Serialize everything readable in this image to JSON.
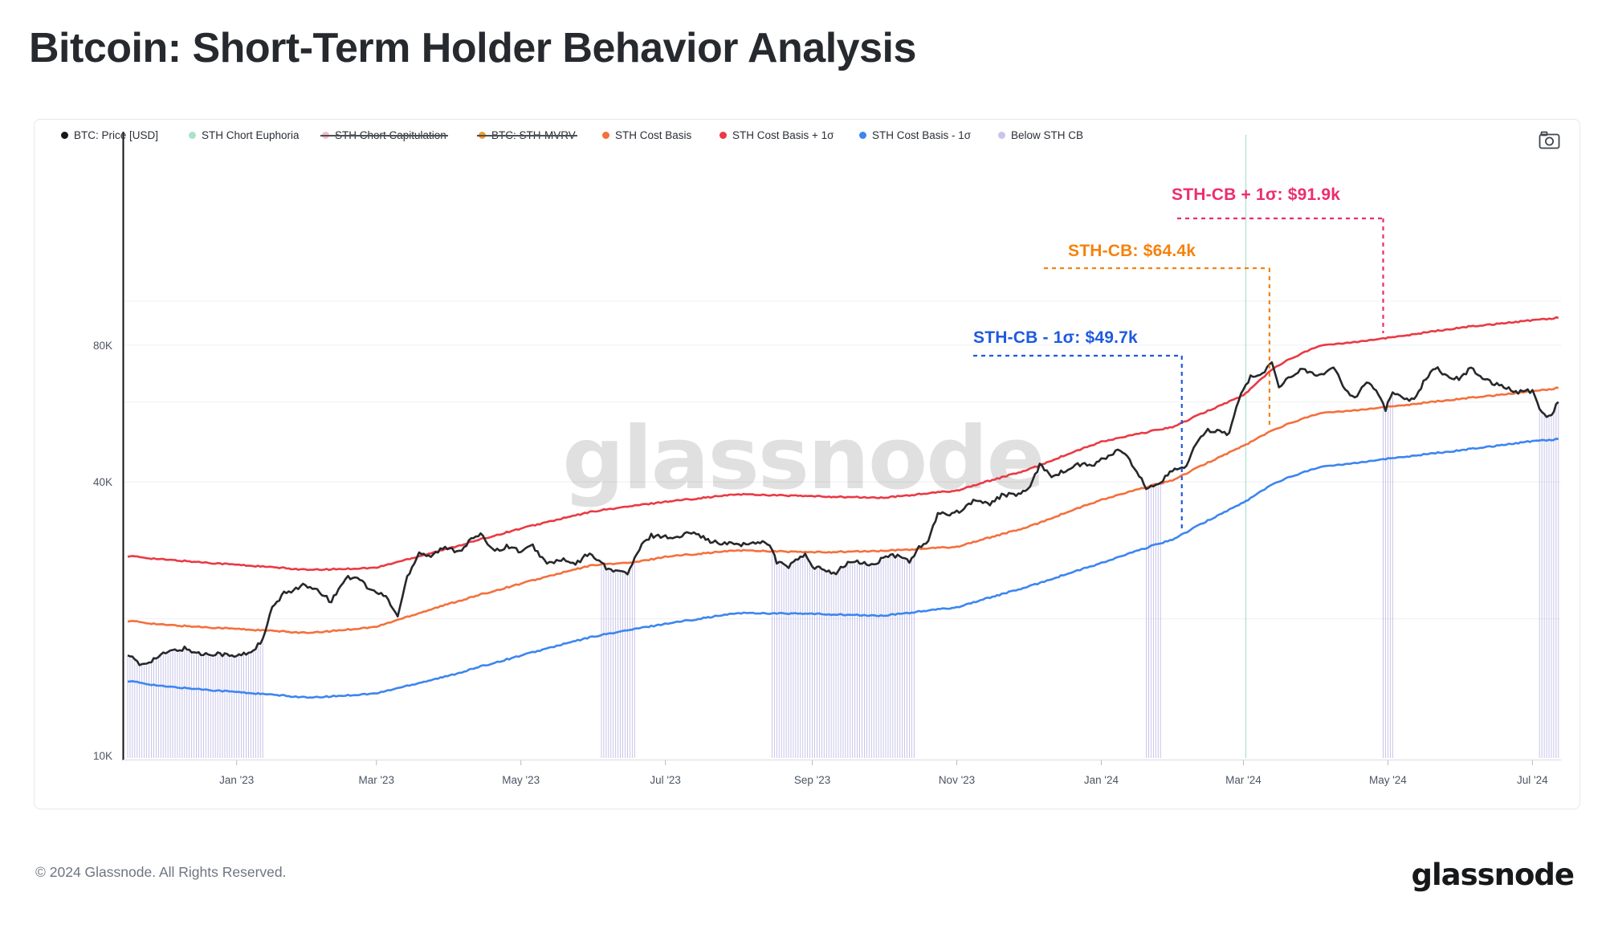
{
  "page": {
    "title": "Bitcoin: Short-Term Holder Behavior Analysis",
    "footer_copyright": "© 2024 Glassnode. All Rights Reserved.",
    "brand_logo": "glassnode",
    "watermark": "glassnode"
  },
  "toolbar": {
    "screenshot_icon": "camera-icon"
  },
  "legend": {
    "items": [
      {
        "label": "BTC: Price [USD]",
        "color": "#17181c",
        "struck": false
      },
      {
        "label": "STH Chort Euphoria",
        "color": "#a9e3c8",
        "struck": false
      },
      {
        "label": "STH Chort Capitulation",
        "color": "#f5bcc8",
        "struck": true
      },
      {
        "label": "BTC: STH-MVRV",
        "color": "#f09d2e",
        "struck": true
      },
      {
        "label": "STH Cost Basis",
        "color": "#f4703d",
        "struck": false
      },
      {
        "label": "STH Cost Basis + 1σ",
        "color": "#e93a44",
        "struck": false
      },
      {
        "label": "STH Cost Basis - 1σ",
        "color": "#3d85f0",
        "struck": false
      },
      {
        "label": "Below STH CB",
        "color": "#c9c4ec",
        "struck": false
      }
    ]
  },
  "annotations": [
    {
      "id": "plus",
      "label": "STH-CB + 1σ: $91.9k",
      "value": "91.9k",
      "color": "#ed2d6d",
      "series": "sth_cb_plus_1sd",
      "anchor_date": "2024-04-29"
    },
    {
      "id": "cb",
      "label": "STH-CB: $64.4k",
      "value": "64.4k",
      "color": "#f5820d",
      "series": "sth_cost_basis",
      "anchor_date": "2024-03-12"
    },
    {
      "id": "minus",
      "label": "STH-CB - 1σ: $49.7k",
      "value": "49.7k",
      "color": "#1f5ae0",
      "series": "sth_cb_minus_1sd",
      "anchor_date": "2024-02-04"
    }
  ],
  "chart_data": {
    "type": "line",
    "title": "Bitcoin: Short-Term Holder Behavior Analysis",
    "y_axis": {
      "scale": "log",
      "unit": "USD",
      "ticks": [
        {
          "label": "10K",
          "value": 10
        },
        {
          "label": "40K",
          "value": 40
        },
        {
          "label": "80K",
          "value": 80
        }
      ],
      "gridline_values": [
        20,
        40,
        60,
        80,
        100
      ]
    },
    "x_axis": {
      "ticks": [
        {
          "label": "Jan '23",
          "date": "2023-01-01"
        },
        {
          "label": "Mar '23",
          "date": "2023-03-01"
        },
        {
          "label": "May '23",
          "date": "2023-05-01"
        },
        {
          "label": "Jul '23",
          "date": "2023-07-01"
        },
        {
          "label": "Sep '23",
          "date": "2023-09-01"
        },
        {
          "label": "Nov '23",
          "date": "2023-11-01"
        },
        {
          "label": "Jan '24",
          "date": "2024-01-01"
        },
        {
          "label": "Mar '24",
          "date": "2024-03-01"
        },
        {
          "label": "May '24",
          "date": "2024-05-01"
        },
        {
          "label": "Jul '24",
          "date": "2024-07-01"
        }
      ]
    },
    "series": [
      {
        "id": "btc_price",
        "name": "BTC: Price [USD]",
        "color": "#26282b",
        "width": 2.6,
        "noise": 0.011,
        "points": [
          [
            "2022-11-16",
            16.8
          ],
          [
            "2022-11-21",
            15.8
          ],
          [
            "2022-11-26",
            16.2
          ],
          [
            "2022-12-03",
            16.9
          ],
          [
            "2022-12-10",
            17.2
          ],
          [
            "2022-12-17",
            16.7
          ],
          [
            "2022-12-24",
            16.8
          ],
          [
            "2022-12-31",
            16.5
          ],
          [
            "2023-01-07",
            16.9
          ],
          [
            "2023-01-12",
            17.9
          ],
          [
            "2023-01-16",
            21.1
          ],
          [
            "2023-01-21",
            22.7
          ],
          [
            "2023-01-29",
            23.7
          ],
          [
            "2023-02-05",
            22.9
          ],
          [
            "2023-02-10",
            21.8
          ],
          [
            "2023-02-16",
            24.6
          ],
          [
            "2023-02-21",
            24.8
          ],
          [
            "2023-02-26",
            23.2
          ],
          [
            "2023-03-05",
            22.4
          ],
          [
            "2023-03-10",
            20.2
          ],
          [
            "2023-03-14",
            24.7
          ],
          [
            "2023-03-19",
            28.0
          ],
          [
            "2023-03-24",
            27.5
          ],
          [
            "2023-03-29",
            28.6
          ],
          [
            "2023-04-05",
            28.2
          ],
          [
            "2023-04-11",
            30.2
          ],
          [
            "2023-04-14",
            30.5
          ],
          [
            "2023-04-20",
            28.3
          ],
          [
            "2023-04-26",
            28.9
          ],
          [
            "2023-05-01",
            28.1
          ],
          [
            "2023-05-06",
            28.9
          ],
          [
            "2023-05-12",
            26.4
          ],
          [
            "2023-05-18",
            27.0
          ],
          [
            "2023-05-24",
            26.3
          ],
          [
            "2023-05-29",
            27.7
          ],
          [
            "2023-06-03",
            27.1
          ],
          [
            "2023-06-06",
            25.7
          ],
          [
            "2023-06-10",
            25.6
          ],
          [
            "2023-06-15",
            25.1
          ],
          [
            "2023-06-21",
            29.0
          ],
          [
            "2023-06-25",
            30.5
          ],
          [
            "2023-06-30",
            30.4
          ],
          [
            "2023-07-06",
            30.1
          ],
          [
            "2023-07-13",
            31.3
          ],
          [
            "2023-07-18",
            29.9
          ],
          [
            "2023-07-24",
            29.2
          ],
          [
            "2023-07-30",
            29.3
          ],
          [
            "2023-08-05",
            29.1
          ],
          [
            "2023-08-09",
            29.6
          ],
          [
            "2023-08-14",
            29.3
          ],
          [
            "2023-08-17",
            26.6
          ],
          [
            "2023-08-22",
            26.1
          ],
          [
            "2023-08-29",
            27.7
          ],
          [
            "2023-09-01",
            25.9
          ],
          [
            "2023-09-06",
            25.7
          ],
          [
            "2023-09-11",
            25.2
          ],
          [
            "2023-09-16",
            26.6
          ],
          [
            "2023-09-21",
            26.6
          ],
          [
            "2023-09-27",
            26.2
          ],
          [
            "2023-10-02",
            27.5
          ],
          [
            "2023-10-08",
            27.4
          ],
          [
            "2023-10-12",
            26.8
          ],
          [
            "2023-10-16",
            28.6
          ],
          [
            "2023-10-20",
            29.7
          ],
          [
            "2023-10-24",
            33.9
          ],
          [
            "2023-10-29",
            34.1
          ],
          [
            "2023-11-03",
            34.7
          ],
          [
            "2023-11-09",
            36.7
          ],
          [
            "2023-11-14",
            35.6
          ],
          [
            "2023-11-20",
            37.4
          ],
          [
            "2023-11-26",
            37.5
          ],
          [
            "2023-12-02",
            38.7
          ],
          [
            "2023-12-06",
            43.8
          ],
          [
            "2023-12-11",
            41.3
          ],
          [
            "2023-12-17",
            42.3
          ],
          [
            "2023-12-22",
            43.7
          ],
          [
            "2023-12-28",
            43.5
          ],
          [
            "2024-01-02",
            44.9
          ],
          [
            "2024-01-08",
            46.9
          ],
          [
            "2024-01-11",
            46.3
          ],
          [
            "2024-01-15",
            42.5
          ],
          [
            "2024-01-20",
            39.0
          ],
          [
            "2024-01-23",
            38.7
          ],
          [
            "2024-01-26",
            40.0
          ],
          [
            "2024-01-31",
            42.6
          ],
          [
            "2024-02-05",
            42.7
          ],
          [
            "2024-02-09",
            47.1
          ],
          [
            "2024-02-14",
            51.8
          ],
          [
            "2024-02-19",
            52.0
          ],
          [
            "2024-02-24",
            51.0
          ],
          [
            "2024-02-28",
            60.6
          ],
          [
            "2024-03-04",
            68.3
          ],
          [
            "2024-03-08",
            68.3
          ],
          [
            "2024-03-13",
            73.1
          ],
          [
            "2024-03-16",
            65.3
          ],
          [
            "2024-03-21",
            67.9
          ],
          [
            "2024-03-25",
            70.8
          ],
          [
            "2024-03-30",
            69.6
          ],
          [
            "2024-04-04",
            68.5
          ],
          [
            "2024-04-08",
            71.6
          ],
          [
            "2024-04-13",
            63.9
          ],
          [
            "2024-04-17",
            61.3
          ],
          [
            "2024-04-22",
            66.8
          ],
          [
            "2024-04-26",
            63.8
          ],
          [
            "2024-04-30",
            57.7
          ],
          [
            "2024-05-03",
            62.9
          ],
          [
            "2024-05-08",
            61.2
          ],
          [
            "2024-05-12",
            60.8
          ],
          [
            "2024-05-16",
            66.2
          ],
          [
            "2024-05-21",
            71.4
          ],
          [
            "2024-05-26",
            68.5
          ],
          [
            "2024-05-31",
            67.5
          ],
          [
            "2024-06-05",
            71.1
          ],
          [
            "2024-06-11",
            67.3
          ],
          [
            "2024-06-15",
            66.0
          ],
          [
            "2024-06-18",
            65.2
          ],
          [
            "2024-06-24",
            63.2
          ],
          [
            "2024-07-01",
            63.5
          ],
          [
            "2024-07-04",
            58.0
          ],
          [
            "2024-07-05",
            56.6
          ],
          [
            "2024-07-08",
            55.9
          ],
          [
            "2024-07-10",
            57.5
          ],
          [
            "2024-07-12",
            60.0
          ]
        ]
      },
      {
        "id": "sth_cb_plus_1sd",
        "name": "STH Cost Basis + 1σ",
        "color": "#e93a44",
        "width": 2.6,
        "noise": 0.0035,
        "points": [
          [
            "2022-11-16",
            27.5
          ],
          [
            "2022-12-01",
            27.0
          ],
          [
            "2023-01-01",
            26.3
          ],
          [
            "2023-02-01",
            25.6
          ],
          [
            "2023-03-01",
            25.9
          ],
          [
            "2023-04-01",
            28.6
          ],
          [
            "2023-05-01",
            31.6
          ],
          [
            "2023-06-01",
            34.5
          ],
          [
            "2023-07-01",
            36.2
          ],
          [
            "2023-08-01",
            37.6
          ],
          [
            "2023-09-01",
            37.2
          ],
          [
            "2023-10-01",
            36.9
          ],
          [
            "2023-11-01",
            38.3
          ],
          [
            "2023-12-01",
            42.5
          ],
          [
            "2024-01-01",
            49.0
          ],
          [
            "2024-02-01",
            53.0
          ],
          [
            "2024-03-01",
            62.0
          ],
          [
            "2024-03-15",
            72.0
          ],
          [
            "2024-04-01",
            79.5
          ],
          [
            "2024-05-01",
            83.0
          ],
          [
            "2024-06-01",
            87.5
          ],
          [
            "2024-07-01",
            90.8
          ],
          [
            "2024-07-12",
            91.9
          ]
        ]
      },
      {
        "id": "sth_cost_basis",
        "name": "STH Cost Basis",
        "color": "#f4703d",
        "width": 2.6,
        "noise": 0.0035,
        "points": [
          [
            "2022-11-16",
            19.8
          ],
          [
            "2022-12-01",
            19.4
          ],
          [
            "2023-01-01",
            19.0
          ],
          [
            "2023-02-01",
            18.6
          ],
          [
            "2023-03-01",
            19.2
          ],
          [
            "2023-04-01",
            21.6
          ],
          [
            "2023-05-01",
            23.9
          ],
          [
            "2023-06-01",
            26.3
          ],
          [
            "2023-06-18",
            26.6
          ],
          [
            "2023-07-01",
            27.4
          ],
          [
            "2023-08-01",
            28.3
          ],
          [
            "2023-09-01",
            28.0
          ],
          [
            "2023-10-01",
            28.2
          ],
          [
            "2023-11-01",
            28.8
          ],
          [
            "2023-12-01",
            31.8
          ],
          [
            "2024-01-01",
            36.5
          ],
          [
            "2024-02-01",
            40.5
          ],
          [
            "2024-03-01",
            48.0
          ],
          [
            "2024-03-15",
            52.5
          ],
          [
            "2024-04-01",
            56.5
          ],
          [
            "2024-05-01",
            58.5
          ],
          [
            "2024-06-01",
            61.0
          ],
          [
            "2024-07-01",
            63.3
          ],
          [
            "2024-07-12",
            64.4
          ]
        ]
      },
      {
        "id": "sth_cb_minus_1sd",
        "name": "STH Cost Basis - 1σ",
        "color": "#3d85f0",
        "width": 2.6,
        "noise": 0.0035,
        "points": [
          [
            "2022-11-16",
            14.6
          ],
          [
            "2022-12-01",
            14.2
          ],
          [
            "2023-01-01",
            13.8
          ],
          [
            "2023-02-01",
            13.4
          ],
          [
            "2023-03-01",
            13.7
          ],
          [
            "2023-04-01",
            15.0
          ],
          [
            "2023-05-01",
            16.6
          ],
          [
            "2023-06-01",
            18.3
          ],
          [
            "2023-07-01",
            19.5
          ],
          [
            "2023-08-01",
            20.6
          ],
          [
            "2023-09-01",
            20.5
          ],
          [
            "2023-10-01",
            20.3
          ],
          [
            "2023-11-01",
            21.2
          ],
          [
            "2023-12-01",
            23.5
          ],
          [
            "2024-01-01",
            26.5
          ],
          [
            "2024-02-01",
            30.0
          ],
          [
            "2024-03-01",
            36.0
          ],
          [
            "2024-03-15",
            40.0
          ],
          [
            "2024-04-01",
            43.0
          ],
          [
            "2024-05-01",
            45.0
          ],
          [
            "2024-06-01",
            47.0
          ],
          [
            "2024-07-01",
            49.2
          ],
          [
            "2024-07-12",
            49.7
          ]
        ]
      }
    ],
    "events": {
      "euphoria_dates": [
        "2024-03-02"
      ],
      "euphoria_color": "#b9e8d3",
      "below_sth_cb_color": "#8f88d4",
      "below_sth_cb_bands": [
        [
          "2022-11-16",
          "2023-01-12"
        ],
        [
          "2023-06-04",
          "2023-06-18"
        ],
        [
          "2023-08-15",
          "2023-10-14"
        ],
        [
          "2024-01-20",
          "2024-01-26"
        ],
        [
          "2024-04-29",
          "2024-05-03"
        ],
        [
          "2024-07-04",
          "2024-07-12"
        ]
      ]
    }
  }
}
